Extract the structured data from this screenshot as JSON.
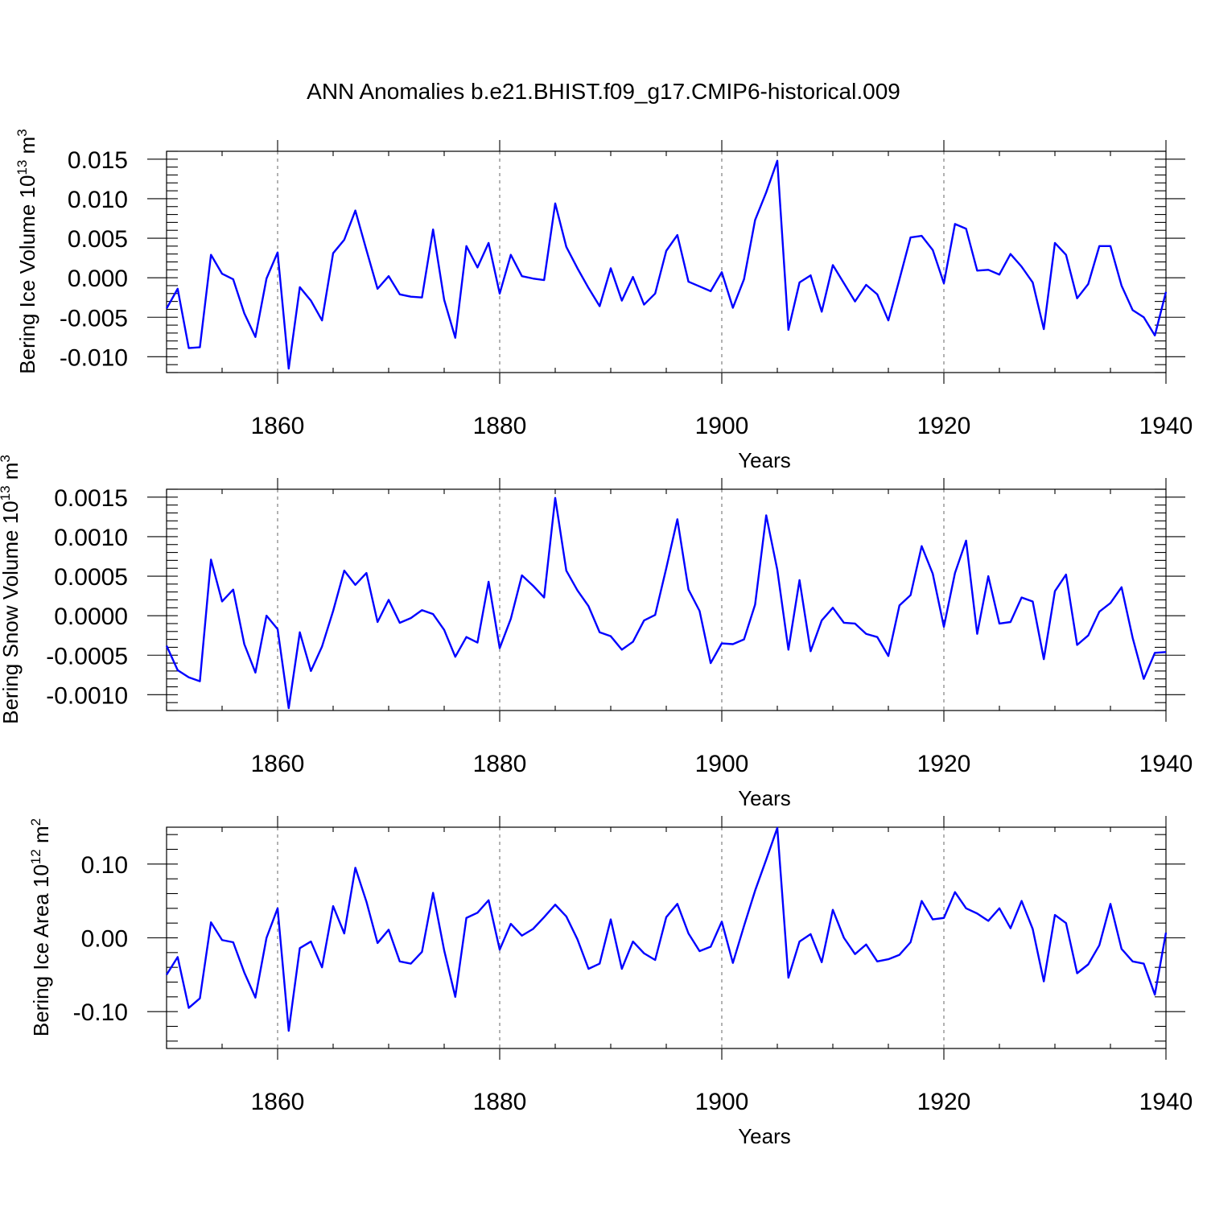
{
  "title": "ANN Anomalies b.e21.BHIST.f09_g17.CMIP6-historical.009",
  "colors": {
    "series": "#0000ff",
    "frame": "#000000",
    "grid": "#666666"
  },
  "chart_data": [
    {
      "type": "line",
      "name": "ice-volume",
      "ylabel_base": "Bering Ice Volume 10",
      "ylabel_exp": "13",
      "ylabel_unit": " m",
      "ylabel_unit_exp": "3",
      "xlabel": "Years",
      "xlim": [
        1850,
        1940
      ],
      "ylim": [
        -0.012,
        0.016
      ],
      "grid": true,
      "xticks": [
        {
          "value": 1860,
          "label": "1860"
        },
        {
          "value": 1880,
          "label": "1880"
        },
        {
          "value": 1900,
          "label": "1900"
        },
        {
          "value": 1920,
          "label": "1920"
        },
        {
          "value": 1940,
          "label": "1940"
        }
      ],
      "yticks": [
        {
          "value": 0.015,
          "label": "0.015"
        },
        {
          "value": 0.01,
          "label": "0.010"
        },
        {
          "value": 0.005,
          "label": "0.005"
        },
        {
          "value": 0.0,
          "label": "0.000"
        },
        {
          "value": -0.005,
          "label": "-0.005"
        },
        {
          "value": -0.01,
          "label": "-0.010"
        }
      ],
      "x_start": 1850,
      "values": [
        -0.0039,
        -0.0014,
        -0.0089,
        -0.0088,
        0.0029,
        0.0005,
        -0.0002,
        -0.0045,
        -0.0075,
        -0.0001,
        0.0032,
        -0.0115,
        -0.0012,
        -0.0029,
        -0.0054,
        0.0031,
        0.0048,
        0.0085,
        0.0035,
        -0.0014,
        0.0002,
        -0.0021,
        -0.0024,
        -0.0025,
        0.0061,
        -0.0028,
        -0.0076,
        0.004,
        0.0013,
        0.0044,
        -0.002,
        0.0029,
        0.0002,
        -0.0001,
        -0.0003,
        0.0094,
        0.0039,
        0.0012,
        -0.0013,
        -0.0036,
        0.0012,
        -0.0029,
        0.0001,
        -0.0034,
        -0.002,
        0.0034,
        0.0054,
        -0.0005,
        -0.0011,
        -0.0017,
        0.0007,
        -0.0038,
        -0.0002,
        0.0073,
        0.0108,
        0.0148,
        -0.0066,
        -0.0006,
        0.0003,
        -0.0043,
        0.0016,
        -0.0007,
        -0.003,
        -0.0009,
        -0.0021,
        -0.0054,
        -0.0002,
        0.0051,
        0.0053,
        0.0035,
        -0.0007,
        0.0068,
        0.0062,
        0.0009,
        0.001,
        0.0004,
        0.003,
        0.0014,
        -0.0006,
        -0.0065,
        0.0044,
        0.0029,
        -0.0026,
        -0.0008,
        0.004,
        0.004,
        -0.001,
        -0.0041,
        -0.005,
        -0.0073,
        -0.0018
      ]
    },
    {
      "type": "line",
      "name": "snow-volume",
      "ylabel_base": "Bering Snow Volume 10",
      "ylabel_exp": "13",
      "ylabel_unit": " m",
      "ylabel_unit_exp": "3",
      "xlabel": "Years",
      "xlim": [
        1850,
        1940
      ],
      "ylim": [
        -0.0012,
        0.0016
      ],
      "grid": true,
      "xticks": [
        {
          "value": 1860,
          "label": "1860"
        },
        {
          "value": 1880,
          "label": "1880"
        },
        {
          "value": 1900,
          "label": "1900"
        },
        {
          "value": 1920,
          "label": "1920"
        },
        {
          "value": 1940,
          "label": "1940"
        }
      ],
      "yticks": [
        {
          "value": 0.0015,
          "label": "0.0015"
        },
        {
          "value": 0.001,
          "label": "0.0010"
        },
        {
          "value": 0.0005,
          "label": "0.0005"
        },
        {
          "value": 0.0,
          "label": "0.0000"
        },
        {
          "value": -0.0005,
          "label": "-0.0005"
        },
        {
          "value": -0.001,
          "label": "-0.0010"
        }
      ],
      "x_start": 1850,
      "values": [
        -0.00038,
        -0.00069,
        -0.00078,
        -0.00083,
        0.00071,
        0.00018,
        0.00033,
        -0.00036,
        -0.00072,
        0.0,
        -0.00017,
        -0.00117,
        -0.00021,
        -0.0007,
        -0.00039,
        6e-05,
        0.00057,
        0.00039,
        0.00054,
        -8e-05,
        0.0002,
        -9e-05,
        -3e-05,
        7e-05,
        2e-05,
        -0.00018,
        -0.00052,
        -0.00027,
        -0.00034,
        0.00043,
        -0.00041,
        -4e-05,
        0.00051,
        0.00038,
        0.00023,
        0.00149,
        0.00057,
        0.00032,
        0.00012,
        -0.00021,
        -0.00026,
        -0.00043,
        -0.00033,
        -6e-05,
        1e-05,
        0.0006,
        0.00122,
        0.00033,
        6e-05,
        -0.0006,
        -0.00035,
        -0.00036,
        -0.0003,
        0.00014,
        0.00127,
        0.00058,
        -0.00043,
        0.00045,
        -0.00045,
        -6e-05,
        0.0001,
        -9e-05,
        -0.0001,
        -0.00023,
        -0.00027,
        -0.00051,
        0.00013,
        0.00026,
        0.00088,
        0.00053,
        -0.00014,
        0.00054,
        0.00095,
        -0.00023,
        0.0005,
        -0.0001,
        -8e-05,
        0.00023,
        0.00018,
        -0.00055,
        0.00031,
        0.00052,
        -0.00037,
        -0.00025,
        5e-05,
        0.00016,
        0.00036,
        -0.00028,
        -0.0008,
        -0.00047,
        -0.00046
      ]
    },
    {
      "type": "line",
      "name": "ice-area",
      "ylabel_base": "Bering Ice Area 10",
      "ylabel_exp": "12",
      "ylabel_unit": " m",
      "ylabel_unit_exp": "2",
      "xlabel": "Years",
      "xlim": [
        1850,
        1940
      ],
      "ylim": [
        -0.15,
        0.15
      ],
      "grid": true,
      "xticks": [
        {
          "value": 1860,
          "label": "1860"
        },
        {
          "value": 1880,
          "label": "1880"
        },
        {
          "value": 1900,
          "label": "1900"
        },
        {
          "value": 1920,
          "label": "1920"
        },
        {
          "value": 1940,
          "label": "1940"
        }
      ],
      "yticks": [
        {
          "value": 0.1,
          "label": "0.10"
        },
        {
          "value": 0.0,
          "label": "0.00"
        },
        {
          "value": -0.1,
          "label": "-0.10"
        }
      ],
      "x_start": 1850,
      "values": [
        -0.05,
        -0.026,
        -0.095,
        -0.082,
        0.021,
        -0.003,
        -0.006,
        -0.047,
        -0.081,
        0.0,
        0.04,
        -0.126,
        -0.014,
        -0.005,
        -0.04,
        0.043,
        0.006,
        0.095,
        0.049,
        -0.007,
        0.011,
        -0.032,
        -0.035,
        -0.019,
        0.061,
        -0.017,
        -0.08,
        0.027,
        0.034,
        0.051,
        -0.016,
        0.019,
        0.003,
        0.012,
        0.028,
        0.045,
        0.029,
        -0.002,
        -0.042,
        -0.035,
        0.025,
        -0.042,
        -0.005,
        -0.021,
        -0.03,
        0.028,
        0.046,
        0.006,
        -0.018,
        -0.012,
        0.022,
        -0.034,
        0.016,
        0.064,
        0.106,
        0.149,
        -0.054,
        -0.005,
        0.005,
        -0.033,
        0.038,
        0.0,
        -0.022,
        -0.009,
        -0.032,
        -0.029,
        -0.023,
        -0.006,
        0.05,
        0.025,
        0.027,
        0.062,
        0.04,
        0.033,
        0.023,
        0.04,
        0.013,
        0.05,
        0.012,
        -0.059,
        0.031,
        0.02,
        -0.048,
        -0.036,
        -0.01,
        0.046,
        -0.015,
        -0.032,
        -0.035,
        -0.077,
        0.007
      ]
    }
  ]
}
